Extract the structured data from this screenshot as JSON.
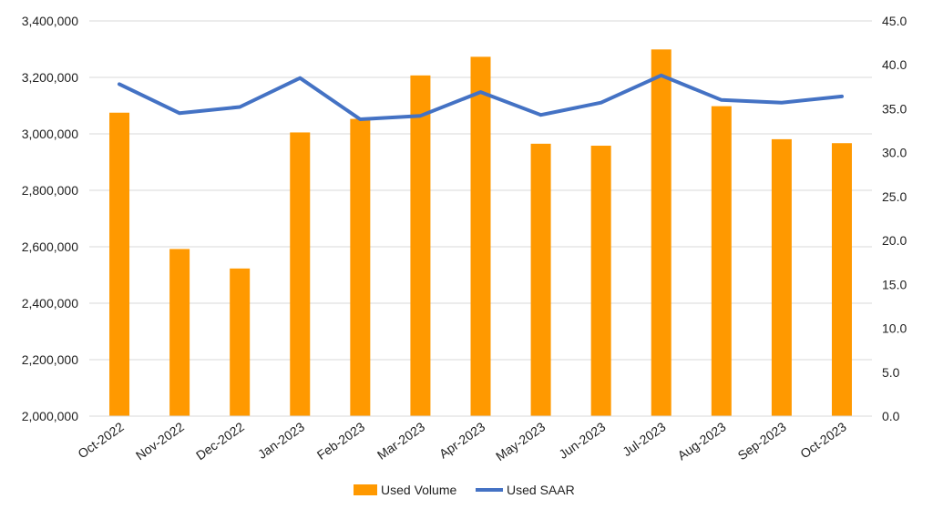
{
  "chart_data": {
    "type": "bar",
    "categories": [
      "Oct-2022",
      "Nov-2022",
      "Dec-2022",
      "Jan-2023",
      "Feb-2023",
      "Mar-2023",
      "Apr-2023",
      "May-2023",
      "Jun-2023",
      "Jul-2023",
      "Aug-2023",
      "Sep-2023",
      "Oct-2023"
    ],
    "series": [
      {
        "name": "Used Volume",
        "type": "bar",
        "axis": "left",
        "color": "#FF9900",
        "values": [
          3075000,
          2592000,
          2523000,
          3005000,
          3053000,
          3207000,
          3273000,
          2965000,
          2958000,
          3299000,
          3098000,
          2981000,
          2967000
        ]
      },
      {
        "name": "Used SAAR",
        "type": "line",
        "axis": "right",
        "color": "#4472C4",
        "values": [
          37.8,
          34.5,
          35.2,
          38.5,
          33.8,
          34.2,
          36.9,
          34.3,
          35.7,
          38.8,
          36.0,
          35.7,
          36.4
        ]
      }
    ],
    "left_axis": {
      "range": [
        2000000,
        3400000
      ],
      "ticks": [
        "2,000,000",
        "2,200,000",
        "2,400,000",
        "2,600,000",
        "2,800,000",
        "3,000,000",
        "3,200,000",
        "3,400,000"
      ]
    },
    "right_axis": {
      "range": [
        0,
        45
      ],
      "ticks": [
        "0.0",
        "5.0",
        "10.0",
        "15.0",
        "20.0",
        "25.0",
        "30.0",
        "35.0",
        "40.0",
        "45.0"
      ]
    },
    "grid": true,
    "legend_position": "bottom"
  },
  "legend": {
    "bar_label": "Used Volume",
    "line_label": "Used SAAR"
  }
}
